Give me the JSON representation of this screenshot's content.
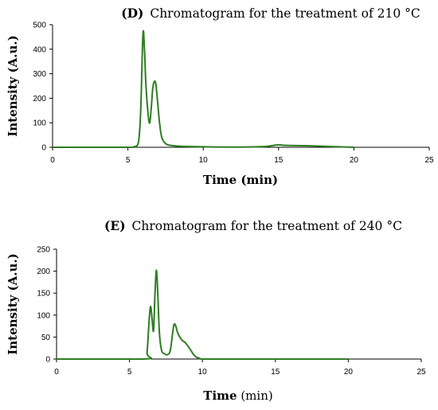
{
  "chart_data": [
    {
      "type": "line",
      "title_prefix": "(D)",
      "title": "Chromatogram for the treatment of 210 °C",
      "xlabel": "Time (min)",
      "ylabel": "Intensity (A.u.)",
      "xlim": [
        0,
        25
      ],
      "ylim": [
        0,
        500
      ],
      "xticks": [
        0,
        5,
        10,
        15,
        20,
        25
      ],
      "yticks": [
        0,
        100,
        200,
        300,
        400,
        500
      ],
      "grid": false,
      "color": "#2e7d22",
      "series": [
        {
          "x": [
            0,
            5.0,
            5.4,
            5.7,
            5.85,
            6.0,
            6.1,
            6.2,
            6.35,
            6.45,
            6.55,
            6.65,
            6.75,
            6.85,
            6.95,
            7.1,
            7.25,
            7.5,
            7.8,
            8.5,
            10,
            12,
            14,
            14.6,
            15.0,
            15.4,
            16,
            17,
            18,
            19,
            20
          ],
          "y": [
            0,
            0,
            2,
            20,
            150,
            462,
            400,
            250,
            130,
            100,
            160,
            240,
            268,
            260,
            200,
            100,
            40,
            15,
            8,
            4,
            2,
            1,
            3,
            7,
            10,
            8,
            7,
            6,
            4,
            2,
            0
          ]
        }
      ]
    },
    {
      "type": "line",
      "title_prefix": "(E)",
      "title": "Chromatogram for the treatment of 240 °C",
      "xlabel_bold": "Time",
      "xlabel_rest": " (min)",
      "ylabel": "Intensity (A.u.)",
      "xlim": [
        0,
        25
      ],
      "ylim": [
        0,
        250
      ],
      "xticks": [
        0,
        5,
        10,
        15,
        20,
        25
      ],
      "yticks": [
        0,
        50,
        100,
        150,
        200,
        250
      ],
      "grid": false,
      "color": "#2e7d22",
      "series": [
        {
          "x": [
            0,
            6.0,
            6.2,
            6.35,
            6.45,
            6.55,
            6.65,
            6.75,
            6.85,
            6.95,
            7.05,
            7.2,
            7.4,
            7.6,
            7.8,
            8.0,
            8.1,
            8.2,
            8.3,
            8.45,
            8.6,
            8.8,
            9.0,
            9.2,
            9.4,
            9.6,
            9.8,
            10,
            12,
            20
          ],
          "y": [
            0,
            0,
            15,
            90,
            120,
            90,
            65,
            150,
            202,
            140,
            60,
            20,
            12,
            10,
            20,
            70,
            80,
            72,
            60,
            50,
            43,
            38,
            30,
            20,
            10,
            4,
            2,
            0,
            0,
            0
          ]
        }
      ]
    }
  ]
}
